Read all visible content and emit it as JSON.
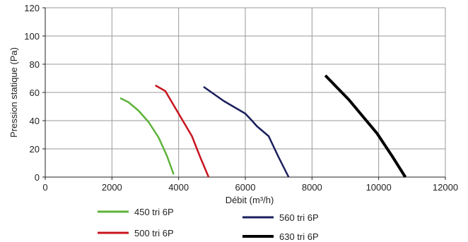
{
  "chart_data": {
    "type": "line",
    "title": "",
    "xlabel": "Débit (m³/h)",
    "ylabel": "Pression statique (Pa)",
    "xlim": [
      0,
      12000
    ],
    "ylim": [
      0,
      120
    ],
    "xticks": [
      0,
      2000,
      4000,
      6000,
      8000,
      10000,
      12000
    ],
    "yticks": [
      0,
      20,
      40,
      60,
      80,
      100,
      120
    ],
    "xtick_labels": [
      "0",
      "2000",
      "4000",
      "6000",
      "8000",
      "10000",
      "12000"
    ],
    "ytick_labels": [
      "0",
      "20",
      "40",
      "60",
      "80",
      "100",
      "120"
    ],
    "grid": true,
    "legend_position": "bottom",
    "series": [
      {
        "name": "450 tri 6P",
        "color": "#5db33a",
        "x": [
          2250,
          2500,
          2800,
          3100,
          3400,
          3650,
          3850
        ],
        "y": [
          56,
          53,
          47,
          39,
          28,
          15,
          2
        ]
      },
      {
        "name": "500 tri 6P",
        "color": "#c8141e",
        "x": [
          3300,
          3600,
          3800,
          4050,
          4400,
          4650,
          4900
        ],
        "y": [
          65,
          61,
          53,
          43,
          29,
          14,
          0
        ]
      },
      {
        "name": "560 tri 6P",
        "color": "#1a1f5c",
        "x": [
          4750,
          5350,
          6000,
          6200,
          6350,
          6700,
          7000,
          7300
        ],
        "y": [
          64,
          54,
          45,
          40,
          36,
          29,
          14,
          0
        ]
      },
      {
        "name": "630 tri 6P",
        "color": "#000000",
        "x": [
          8400,
          9100,
          9950,
          10400,
          10800
        ],
        "y": [
          72,
          55,
          31,
          15,
          0
        ]
      }
    ]
  }
}
